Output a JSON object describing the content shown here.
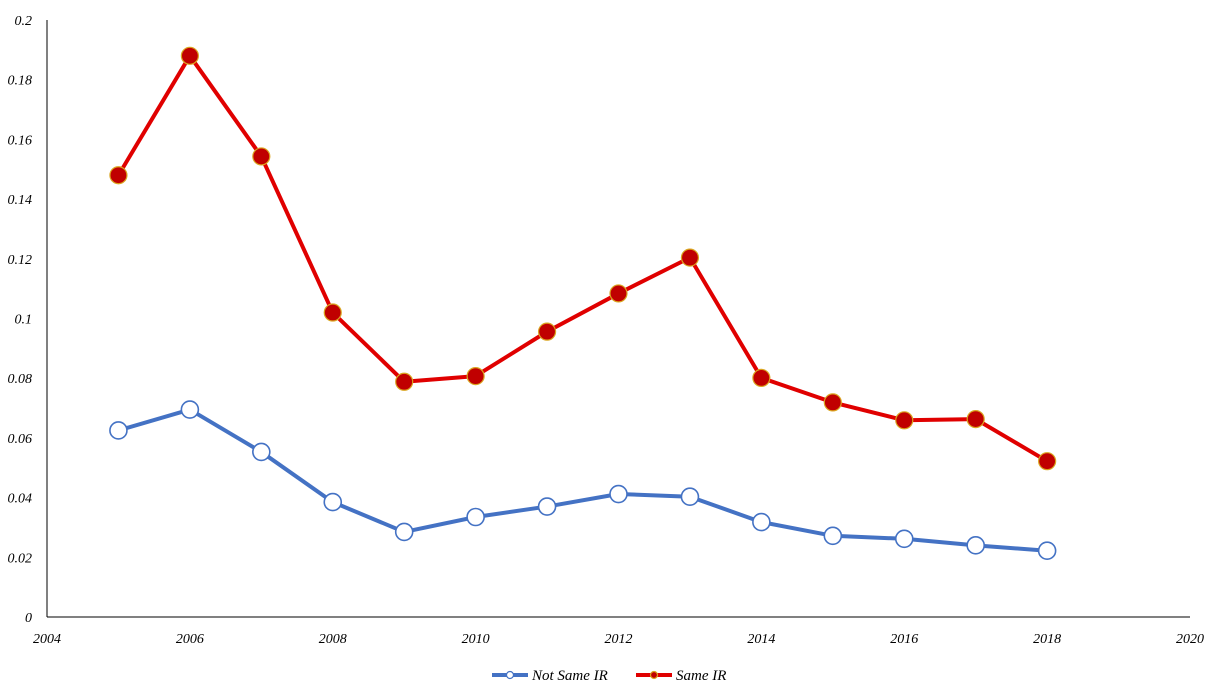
{
  "chart_data": {
    "type": "line",
    "title": "",
    "xlabel": "",
    "ylabel": "",
    "xlim": [
      2004,
      2020
    ],
    "ylim": [
      0,
      0.2
    ],
    "x_ticks": [
      "2004",
      "2006",
      "2008",
      "2010",
      "2012",
      "2014",
      "2016",
      "2018",
      "2020"
    ],
    "y_ticks": [
      "0",
      "0.02",
      "0.04",
      "0.06",
      "0.08",
      "0.1",
      "0.12",
      "0.14",
      "0.16",
      "0.18",
      "0.2"
    ],
    "grid": false,
    "legend_position": "bottom",
    "x": [
      2005,
      2006,
      2007,
      2008,
      2009,
      2010,
      2011,
      2012,
      2013,
      2014,
      2015,
      2016,
      2017,
      2018
    ],
    "series": [
      {
        "name": "Not Same IR",
        "color": "#4472C4",
        "marker": "open-circle",
        "values": [
          0.0625,
          0.0695,
          0.0553,
          0.0385,
          0.0285,
          0.0335,
          0.037,
          0.0412,
          0.0403,
          0.0318,
          0.0272,
          0.0262,
          0.024,
          0.0222
        ]
      },
      {
        "name": "Same IR",
        "color": "#E00000",
        "marker": "filled-circle",
        "marker_fill": "#C00000",
        "values": [
          0.148,
          0.188,
          0.1543,
          0.102,
          0.0788,
          0.0807,
          0.0956,
          0.1084,
          0.1204,
          0.0801,
          0.0719,
          0.0659,
          0.0663,
          0.0522
        ]
      }
    ]
  }
}
